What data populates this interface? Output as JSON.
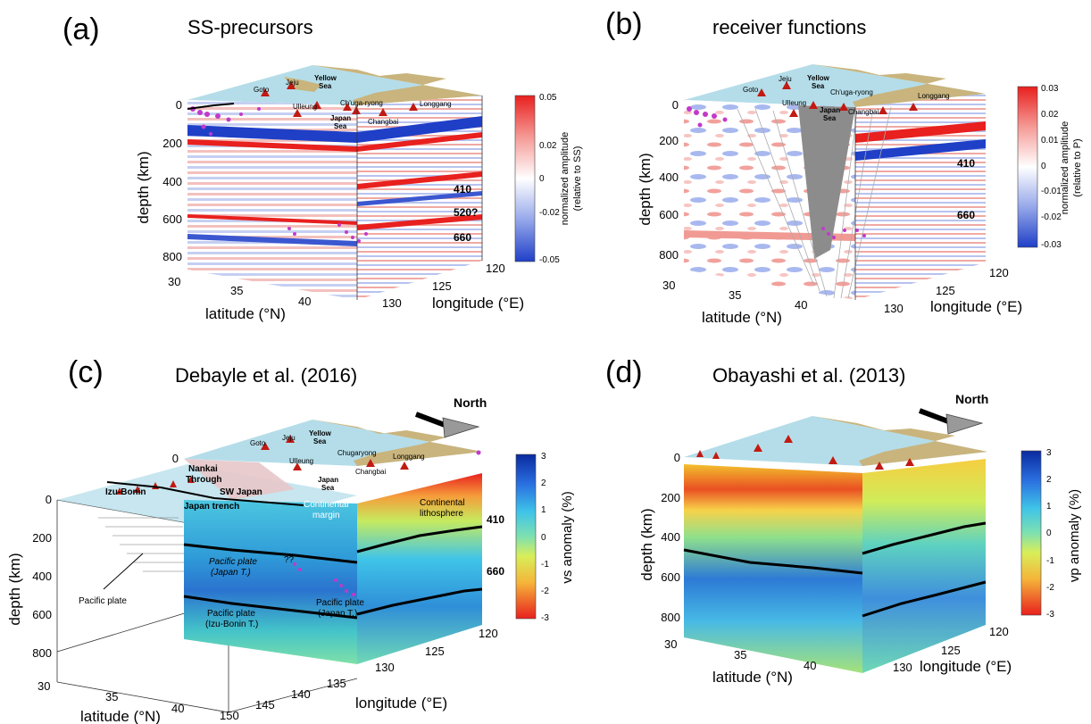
{
  "panels": {
    "a": {
      "letter": "(a)",
      "title": "SS-precursors",
      "depth_label": "depth (km)",
      "lat_label": "latitude (°N)",
      "lon_label": "longitude (°E)",
      "depth_ticks": [
        "0",
        "200",
        "400",
        "600",
        "800"
      ],
      "lat_ticks": [
        "30",
        "35",
        "40"
      ],
      "lon_ticks": [
        "120",
        "125",
        "130"
      ],
      "disc_labels": [
        "410",
        "520?",
        "660"
      ],
      "map_labels": {
        "goto": "Goto",
        "jeju": "Jeju",
        "yellow_sea": "Yellow\nSea",
        "chuga": "Ch'uga-ryong",
        "ulleung": "Ulleung",
        "japan_sea": "Japan\nSea",
        "changbai": "Changbai",
        "longgang": "Longgang"
      },
      "colorbar": {
        "label": "normalized amplitude\n(relative to SS)",
        "ticks": [
          "0.05",
          "0.02",
          "0",
          "-0.02",
          "-0.05"
        ]
      }
    },
    "b": {
      "letter": "(b)",
      "title": "receiver functions",
      "depth_label": "depth (km)",
      "lat_label": "latitude (°N)",
      "lon_label": "longitude (°E)",
      "depth_ticks": [
        "0",
        "200",
        "400",
        "600",
        "800"
      ],
      "lat_ticks": [
        "30",
        "35",
        "40"
      ],
      "lon_ticks": [
        "120",
        "125",
        "130"
      ],
      "disc_labels": [
        "410",
        "660"
      ],
      "map_labels": {
        "goto": "Goto",
        "jeju": "Jeju",
        "yellow_sea": "Yellow\nSea",
        "chuga": "Ch'uga-ryong",
        "ulleung": "Ulleung",
        "japan_sea": "Japan\nSea",
        "changbai": "Changbai",
        "longgang": "Longgang"
      },
      "colorbar": {
        "label": "normalized amplitude\n(relative to P)",
        "ticks": [
          "0.03",
          "0.02",
          "0.01",
          "0",
          "-0.01",
          "-0.02",
          "-0.03"
        ]
      }
    },
    "c": {
      "letter": "(c)",
      "title": "Debayle et al. (2016)",
      "north": "North",
      "depth_label": "depth (km)",
      "lat_label": "latitude (°N)",
      "lon_label": "longitude (°E)",
      "depth_ticks_upper": [
        "0"
      ],
      "depth_ticks": [
        "0",
        "200",
        "400",
        "600",
        "800"
      ],
      "lat_ticks": [
        "30",
        "35",
        "40"
      ],
      "lon_ticks": [
        "150",
        "145",
        "140",
        "135",
        "130",
        "125",
        "120"
      ],
      "disc_labels": [
        "410",
        "660"
      ],
      "map_labels": {
        "goto": "Goto",
        "jeju": "Jeju",
        "yellow_sea": "Yellow\nSea",
        "chugaryong": "Chugaryong",
        "ulleung": "Ulleung",
        "japan_sea": "Japan\nSea",
        "changbai": "Changbai",
        "longgang": "Longgang"
      },
      "annotations": {
        "nankai": "Nankai\nThrough",
        "izu": "Izu-Bonin",
        "swjapan": "SW Japan",
        "trench": "Japan trench",
        "cmargin": "Continental\nmargin",
        "clitho": "Continental\nlithosphere",
        "pp_japan": "Pacific plate\n(Japan T.)",
        "pp_japan2": "Pacific plate\n(Japan T.)",
        "pp_izu": "Pacific plate\n(Izu-Bonin T.)",
        "qq": "??",
        "pacific": "Pacific plate"
      },
      "colorbar": {
        "label": "vs anomaly (%)",
        "ticks": [
          "3",
          "2",
          "1",
          "0",
          "-1",
          "-2",
          "-3"
        ]
      }
    },
    "d": {
      "letter": "(d)",
      "title": "Obayashi et al. (2013)",
      "north": "North",
      "depth_label": "depth (km)",
      "lat_label": "latitude (°N)",
      "lon_label": "longitude (°E)",
      "depth_ticks": [
        "0",
        "200",
        "400",
        "600",
        "800"
      ],
      "lat_ticks": [
        "30",
        "35",
        "40"
      ],
      "lon_ticks": [
        "120",
        "125",
        "130"
      ],
      "colorbar": {
        "label": "vp anomaly (%)",
        "ticks": [
          "3",
          "2",
          "1",
          "0",
          "-1",
          "-2",
          "-3"
        ]
      }
    }
  },
  "colors": {
    "red": "#e8201e",
    "blue": "#1f3fc7",
    "sea": "#b4dde9",
    "land": "#c9b47d",
    "volcano": "#c21a12",
    "quake": "#c13ac9",
    "slab_grey": "#8c8c8c"
  }
}
